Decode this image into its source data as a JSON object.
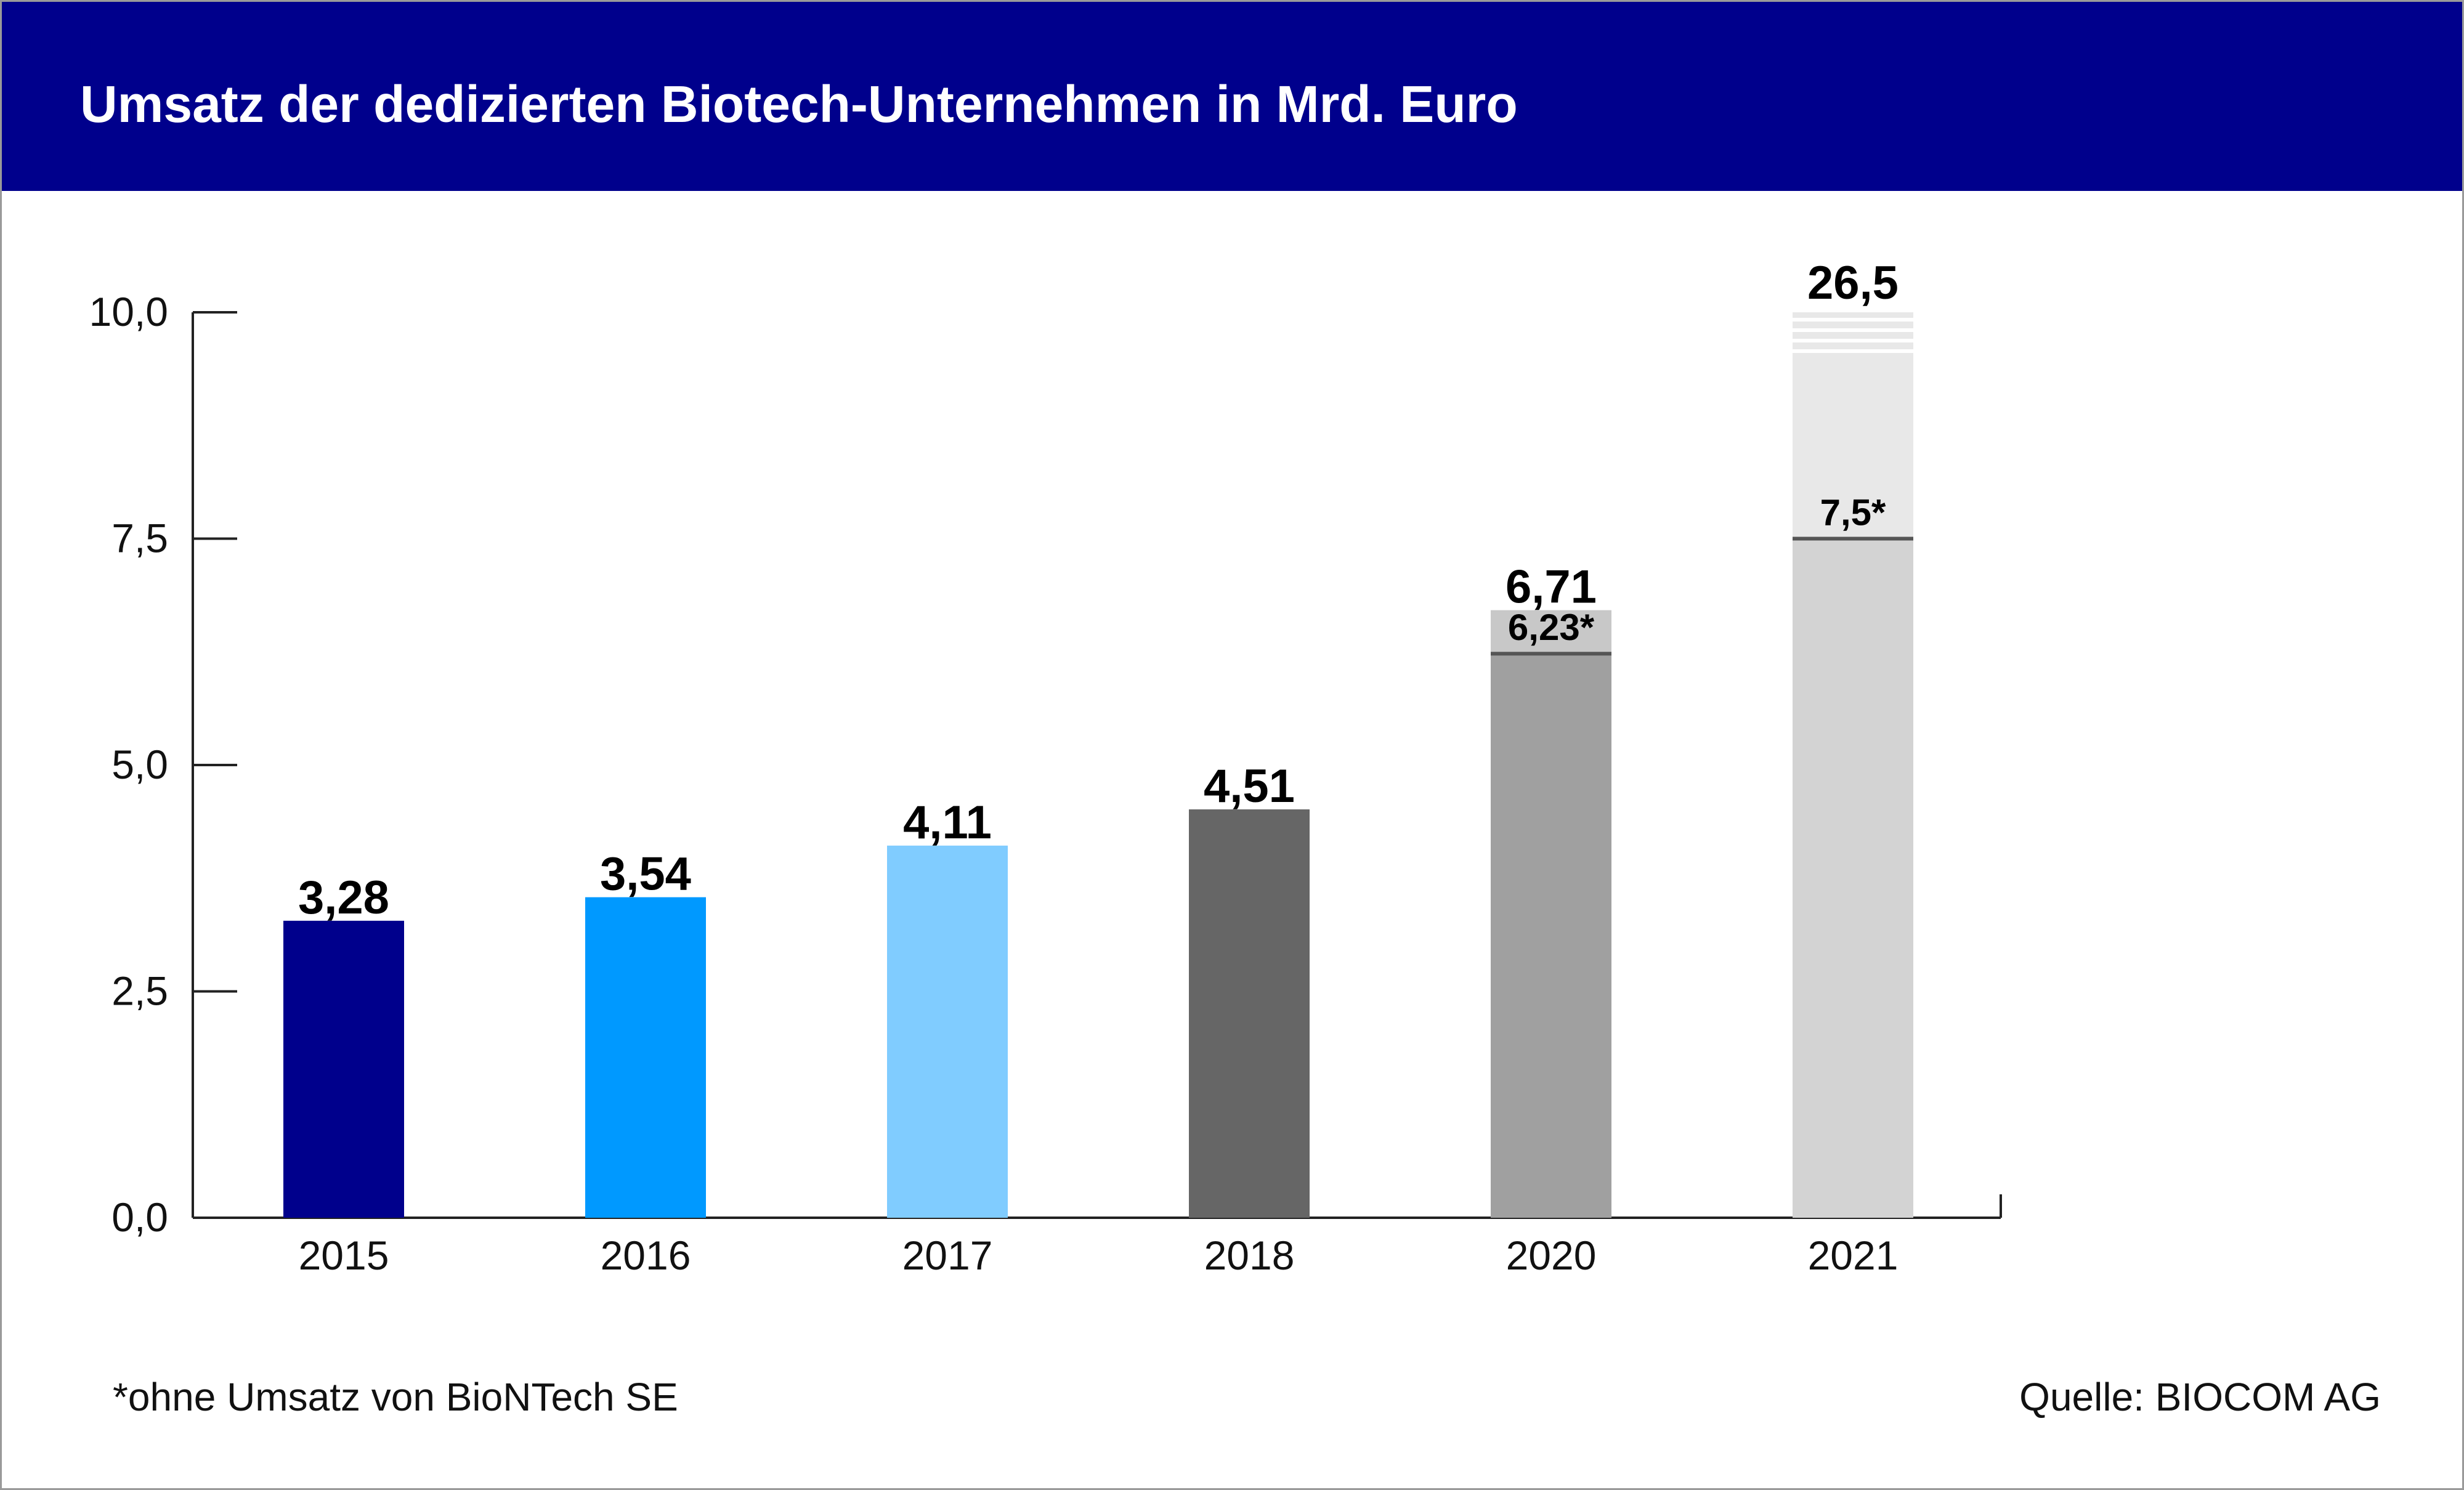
{
  "title": "Umsatz der dedizierten Biotech-Unternehmen in Mrd. Euro",
  "footnote": "*ohne Umsatz von BioNTech SE",
  "source": "Quelle: BIOCOM AG",
  "chart_data": {
    "type": "bar",
    "title": "Umsatz der dedizierten Biotech-Unternehmen in Mrd. Euro",
    "xlabel": "",
    "ylabel": "",
    "ylim": [
      0,
      10
    ],
    "y_axis_break": true,
    "yticks": [
      0,
      2.5,
      5,
      7.5,
      10
    ],
    "ytick_labels": [
      "0,0",
      "2,5",
      "5,0",
      "7,5",
      "10,0"
    ],
    "grid": false,
    "categories": [
      "2015",
      "2016",
      "2017",
      "2018",
      "2020",
      "2021"
    ],
    "values": [
      3.28,
      3.54,
      4.11,
      4.51,
      6.71,
      26.5
    ],
    "value_labels": [
      "3,28",
      "3,54",
      "4,11",
      "4,51",
      "6,71",
      "26,5"
    ],
    "sub_values": [
      null,
      null,
      null,
      null,
      6.23,
      7.5
    ],
    "sub_value_labels": [
      "",
      "",
      "",
      "",
      "6,23*",
      "7,5*"
    ],
    "colors": [
      "#00008c",
      "#0099ff",
      "#80ccff",
      "#666666",
      "#a0a0a0",
      "#d3d3d3"
    ],
    "top_segment_colors": [
      null,
      null,
      null,
      null,
      "#c8c8c8",
      "#e8e8e8"
    ],
    "sub_marker_color": "#555555"
  }
}
